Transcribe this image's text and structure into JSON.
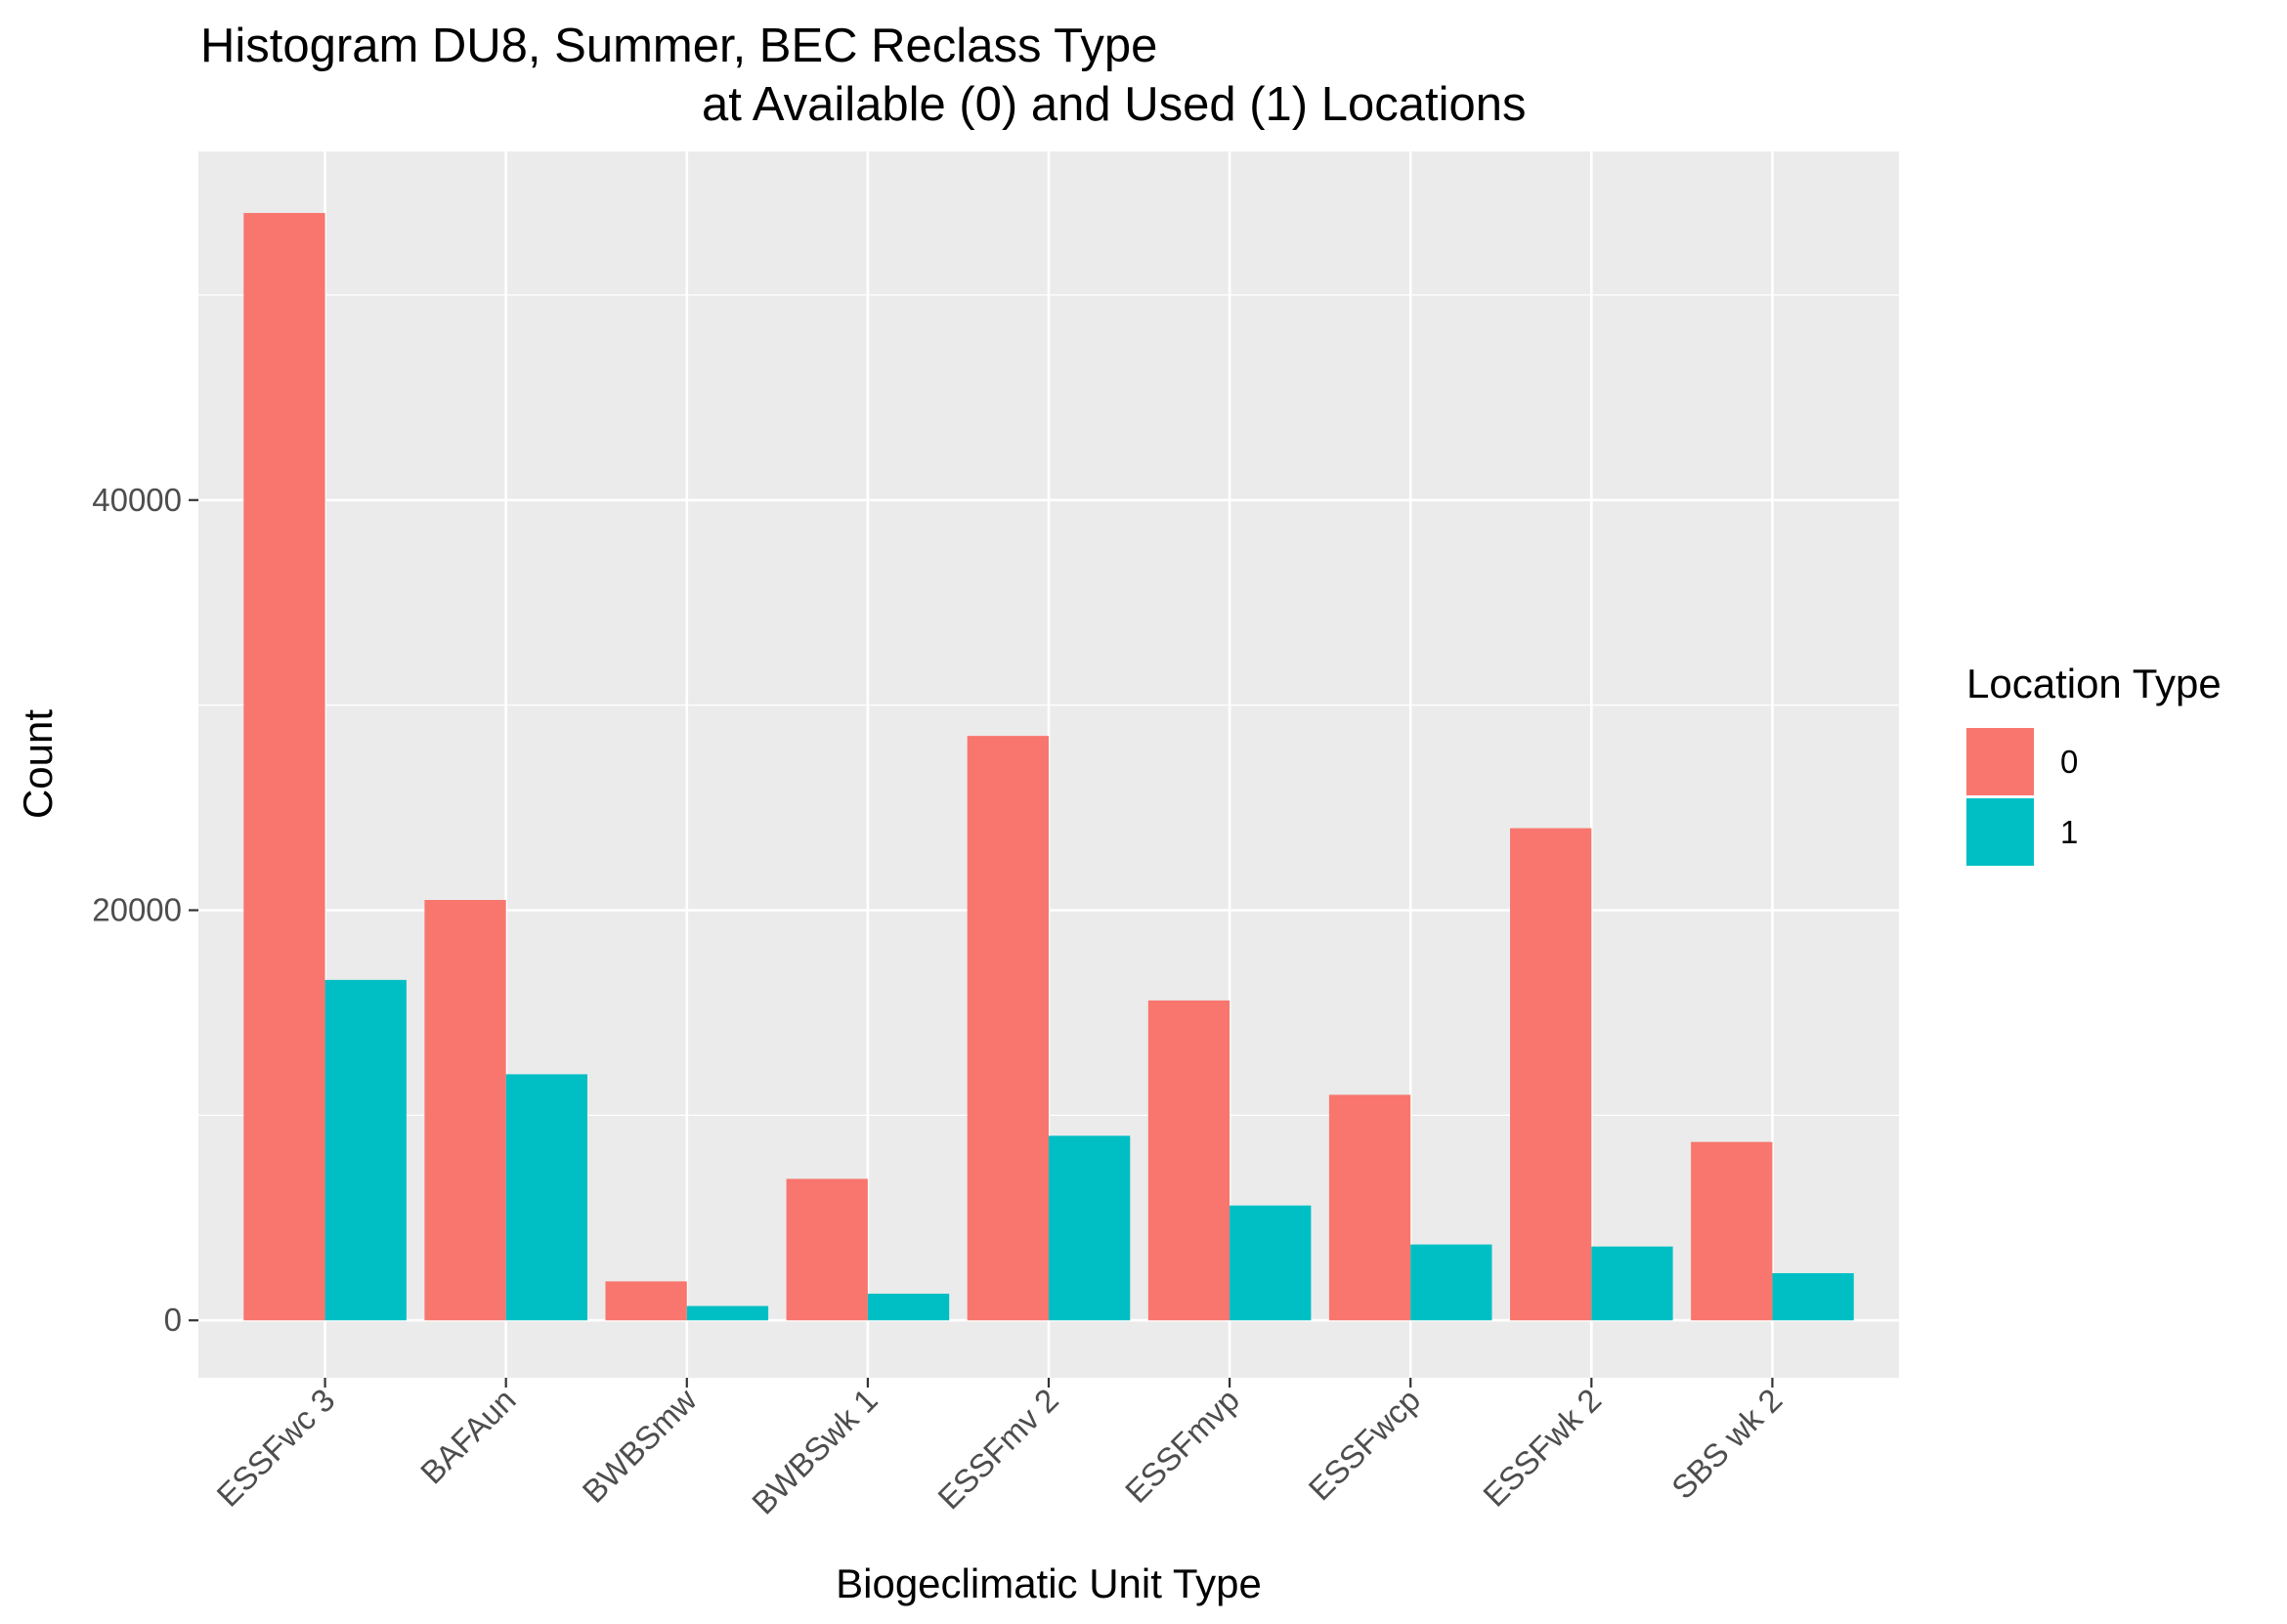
{
  "chart_data": {
    "type": "bar",
    "title_line1": "Histogram DU8, Summer, BEC Reclass Type",
    "title_line2": "at Available (0) and Used (1) Locations",
    "xlabel": "Biogeclimatic Unit Type",
    "ylabel": "Count",
    "categories": [
      "ESSFwc 3",
      "BAFAun",
      "BWBSmw",
      "BWBSwk 1",
      "ESSFmv 2",
      "ESSFmvp",
      "ESSFwcp",
      "ESSFwk 2",
      "SBS wk 2"
    ],
    "series": [
      {
        "name": "0",
        "color": "#F8766D",
        "values": [
          54000,
          20500,
          1900,
          6900,
          28500,
          15600,
          11000,
          24000,
          8700
        ]
      },
      {
        "name": "1",
        "color": "#00BFC4",
        "values": [
          16600,
          12000,
          700,
          1300,
          9000,
          5600,
          3700,
          3600,
          2300
        ]
      }
    ],
    "yticks": [
      0,
      20000,
      40000
    ],
    "yticks_labels": [
      "0",
      "20000",
      "40000"
    ],
    "ylim": [
      -2800,
      57000
    ],
    "grid": true,
    "panel_background": "#EBEBEB",
    "legend_title": "Location Type",
    "legend_position": "right"
  }
}
